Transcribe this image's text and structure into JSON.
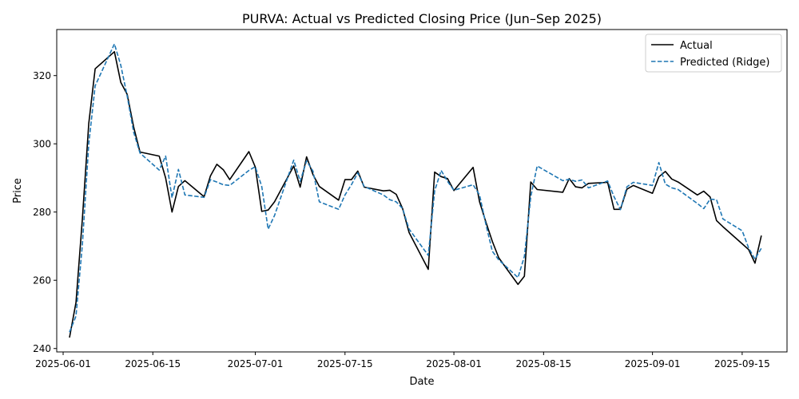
{
  "chart_data": {
    "type": "line",
    "title": "PURVA: Actual vs Predicted Closing Price (Jun–Sep 2025)",
    "xlabel": "Date",
    "ylabel": "Price",
    "x_ticks": [
      "2025-06-01",
      "2025-06-15",
      "2025-07-01",
      "2025-07-15",
      "2025-08-01",
      "2025-08-15",
      "2025-09-01",
      "2025-09-15"
    ],
    "y_ticks": [
      240,
      260,
      280,
      300,
      320
    ],
    "xlim": [
      "2025-05-31",
      "2025-09-22"
    ],
    "ylim": [
      239,
      333.5
    ],
    "grid": false,
    "legend_position": "top-right",
    "colors": {
      "actual": "#000000",
      "predicted": "#1f77b4"
    },
    "series": [
      {
        "name": "Actual",
        "style": "solid",
        "x": [
          "2025-06-02",
          "2025-06-03",
          "2025-06-04",
          "2025-06-05",
          "2025-06-06",
          "2025-06-09",
          "2025-06-10",
          "2025-06-11",
          "2025-06-12",
          "2025-06-13",
          "2025-06-16",
          "2025-06-17",
          "2025-06-18",
          "2025-06-19",
          "2025-06-20",
          "2025-06-23",
          "2025-06-24",
          "2025-06-25",
          "2025-06-26",
          "2025-06-27",
          "2025-06-30",
          "2025-07-01",
          "2025-07-02",
          "2025-07-03",
          "2025-07-04",
          "2025-07-07",
          "2025-07-08",
          "2025-07-09",
          "2025-07-10",
          "2025-07-11",
          "2025-07-14",
          "2025-07-15",
          "2025-07-16",
          "2025-07-17",
          "2025-07-18",
          "2025-07-21",
          "2025-07-22",
          "2025-07-23",
          "2025-07-24",
          "2025-07-25",
          "2025-07-28",
          "2025-07-29",
          "2025-07-30",
          "2025-07-31",
          "2025-08-01",
          "2025-08-04",
          "2025-08-05",
          "2025-08-06",
          "2025-08-07",
          "2025-08-08",
          "2025-08-11",
          "2025-08-12",
          "2025-08-13",
          "2025-08-14",
          "2025-08-18",
          "2025-08-19",
          "2025-08-20",
          "2025-08-21",
          "2025-08-22",
          "2025-08-25",
          "2025-08-26",
          "2025-08-27",
          "2025-08-28",
          "2025-08-29",
          "2025-09-01",
          "2025-09-02",
          "2025-09-03",
          "2025-09-04",
          "2025-09-05",
          "2025-09-08",
          "2025-09-09",
          "2025-09-10",
          "2025-09-11",
          "2025-09-12",
          "2025-09-15",
          "2025-09-16",
          "2025-09-17",
          "2025-09-18"
        ],
        "values": [
          243.2,
          253.5,
          278,
          306,
          322,
          327,
          318,
          314.5,
          305,
          297.6,
          296.4,
          290,
          280,
          287.5,
          289.2,
          284.5,
          290.6,
          294,
          292.4,
          289.5,
          297.7,
          293.2,
          280.2,
          280.6,
          283,
          293.5,
          287.3,
          296.2,
          291,
          287.5,
          283.5,
          289.5,
          289.5,
          292,
          287.3,
          286.2,
          286.4,
          285.2,
          281,
          274,
          263.2,
          291.7,
          290.4,
          289.8,
          286.3,
          293.1,
          283,
          277,
          271.4,
          266.6,
          258.8,
          261.2,
          288.8,
          286.6,
          285.8,
          289.8,
          287.4,
          287.1,
          288.4,
          288.7,
          280.8,
          280.8,
          286.7,
          287.8,
          285.5,
          290.3,
          291.9,
          289.7,
          288.8,
          285,
          286.1,
          284.4,
          277.5,
          275.7,
          270.7,
          269,
          265,
          273.1
        ]
      },
      {
        "name": "Predicted (Ridge)",
        "style": "dashed",
        "x": [
          "2025-06-02",
          "2025-06-03",
          "2025-06-04",
          "2025-06-05",
          "2025-06-06",
          "2025-06-09",
          "2025-06-10",
          "2025-06-11",
          "2025-06-12",
          "2025-06-13",
          "2025-06-16",
          "2025-06-17",
          "2025-06-18",
          "2025-06-19",
          "2025-06-20",
          "2025-06-23",
          "2025-06-24",
          "2025-06-25",
          "2025-06-26",
          "2025-06-27",
          "2025-06-30",
          "2025-07-01",
          "2025-07-02",
          "2025-07-03",
          "2025-07-04",
          "2025-07-07",
          "2025-07-08",
          "2025-07-09",
          "2025-07-10",
          "2025-07-11",
          "2025-07-14",
          "2025-07-15",
          "2025-07-16",
          "2025-07-17",
          "2025-07-18",
          "2025-07-21",
          "2025-07-22",
          "2025-07-23",
          "2025-07-24",
          "2025-07-25",
          "2025-07-28",
          "2025-07-29",
          "2025-07-30",
          "2025-07-31",
          "2025-08-01",
          "2025-08-04",
          "2025-08-05",
          "2025-08-06",
          "2025-08-07",
          "2025-08-08",
          "2025-08-11",
          "2025-08-12",
          "2025-08-13",
          "2025-08-14",
          "2025-08-18",
          "2025-08-19",
          "2025-08-20",
          "2025-08-21",
          "2025-08-22",
          "2025-08-25",
          "2025-08-26",
          "2025-08-27",
          "2025-08-28",
          "2025-08-29",
          "2025-09-01",
          "2025-09-02",
          "2025-09-03",
          "2025-09-04",
          "2025-09-05",
          "2025-09-08",
          "2025-09-09",
          "2025-09-10",
          "2025-09-11",
          "2025-09-12",
          "2025-09-15",
          "2025-09-16",
          "2025-09-17",
          "2025-09-18"
        ],
        "values": [
          244.8,
          249.5,
          270.5,
          300,
          317,
          329.3,
          323,
          314,
          303.5,
          297.3,
          292.3,
          296.4,
          284.2,
          292.5,
          285,
          284.3,
          289.5,
          288.8,
          288,
          287.8,
          292.2,
          293.3,
          287.5,
          275,
          279,
          295.2,
          289,
          295,
          292,
          283,
          280.8,
          285,
          288,
          291.5,
          287.5,
          285,
          283.6,
          283,
          281,
          275,
          267.3,
          286.2,
          292.2,
          289,
          286.4,
          288,
          285,
          276.3,
          268.5,
          266,
          260.8,
          267,
          284.5,
          293.5,
          289.2,
          289.6,
          289,
          289.4,
          287.1,
          289.1,
          284.5,
          280.7,
          287.4,
          288.7,
          287.8,
          294.5,
          288.2,
          287.1,
          286.6,
          282.5,
          281,
          283.8,
          283.6,
          278,
          274.5,
          269.5,
          266.2,
          269.4
        ]
      }
    ]
  }
}
